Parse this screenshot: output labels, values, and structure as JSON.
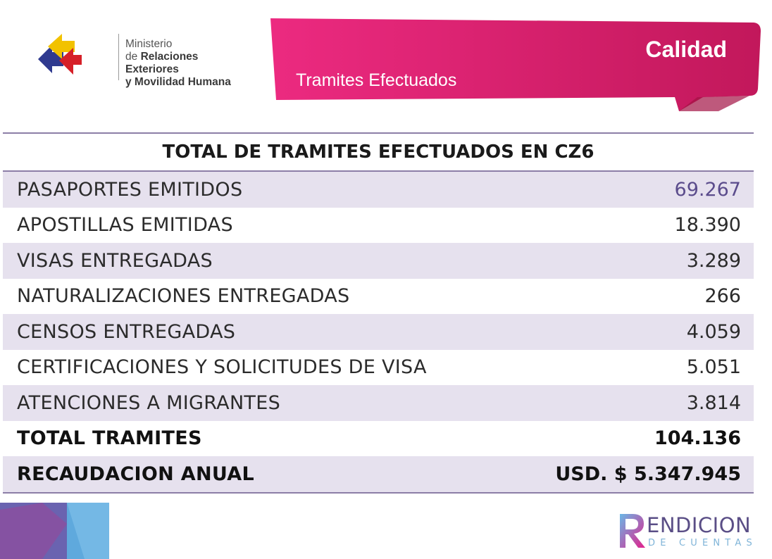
{
  "header": {
    "logo": {
      "line1": "Ministerio",
      "line2_prefix": "de ",
      "line2_bold": "Relaciones Exteriores",
      "line3": "y Movilidad Humana"
    },
    "banner": {
      "title": "Calidad",
      "subtitle": "Tramites Efectuados",
      "colors": {
        "primary": "#e3206f",
        "secondary": "#c2185b"
      }
    }
  },
  "table": {
    "title": "TOTAL DE TRAMITES EFECTUADOS EN CZ6",
    "rows": [
      {
        "label": "PASAPORTES EMITIDOS",
        "value": "69.267"
      },
      {
        "label": "APOSTILLAS EMITIDAS",
        "value": "18.390"
      },
      {
        "label": "VISAS ENTREGADAS",
        "value": "3.289"
      },
      {
        "label": "NATURALIZACIONES ENTREGADAS",
        "value": "266"
      },
      {
        "label": "CENSOS ENTREGADAS",
        "value": "4.059"
      },
      {
        "label": "CERTIFICACIONES Y SOLICITUDES  DE VISA",
        "value": "5.051"
      },
      {
        "label": "ATENCIONES A MIGRANTES",
        "value": "3.814"
      },
      {
        "label": "TOTAL TRAMITES",
        "value": "104.136"
      },
      {
        "label": "RECAUDACION ANUAL",
        "value": "USD. $ 5.347.945"
      }
    ],
    "colors": {
      "alt_row": "#e6e1ee",
      "rule": "#8c7ea7"
    }
  },
  "footer": {
    "brand_letter": "R",
    "brand_top": "ENDICION",
    "brand_bottom": "DE CUENTAS"
  }
}
